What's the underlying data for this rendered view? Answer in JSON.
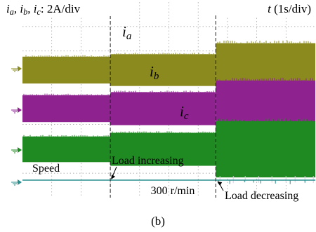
{
  "chart_data": {
    "type": "line",
    "header_left": {
      "parts": [
        {
          "text": "i",
          "italic": true
        },
        {
          "text": "a",
          "italic": true,
          "sub": true
        },
        {
          "text": ", "
        },
        {
          "text": "i",
          "italic": true
        },
        {
          "text": "b",
          "italic": true,
          "sub": true
        },
        {
          "text": ", "
        },
        {
          "text": "i",
          "italic": true
        },
        {
          "text": "c",
          "italic": true,
          "sub": true
        },
        {
          "text": ": 2A/div"
        }
      ]
    },
    "header_right": {
      "parts": [
        {
          "text": "t",
          "italic": true
        },
        {
          "text": " (1s/div)"
        }
      ]
    },
    "x": {
      "divisions": 10,
      "unit": "s/div",
      "value_per_div": 1
    },
    "grid": true,
    "events": [
      {
        "name": "Load increasing",
        "t": 3.0
      },
      {
        "name": "Load decreasing",
        "t": 6.6
      }
    ],
    "series": [
      {
        "name": "ia",
        "label_main": "i",
        "label_sub": "a",
        "color": "#8a8a1e",
        "divs_per_A": 0.5,
        "amplitude_segments": [
          1.1,
          1.3,
          2.2
        ]
      },
      {
        "name": "ib",
        "label_main": "i",
        "label_sub": "b",
        "color": "#8e2390",
        "divs_per_A": 0.5,
        "amplitude_segments": [
          1.1,
          1.35,
          2.3
        ]
      },
      {
        "name": "ic",
        "label_main": "i",
        "label_sub": "c",
        "color": "#1f8a22",
        "divs_per_A": 0.5,
        "amplitude_segments": [
          1.05,
          1.35,
          2.3
        ]
      },
      {
        "name": "Speed",
        "color": "#2a8d8d",
        "value_rpm": 300
      }
    ],
    "speed_level_label": "300 r/min",
    "caption": "(b)"
  }
}
